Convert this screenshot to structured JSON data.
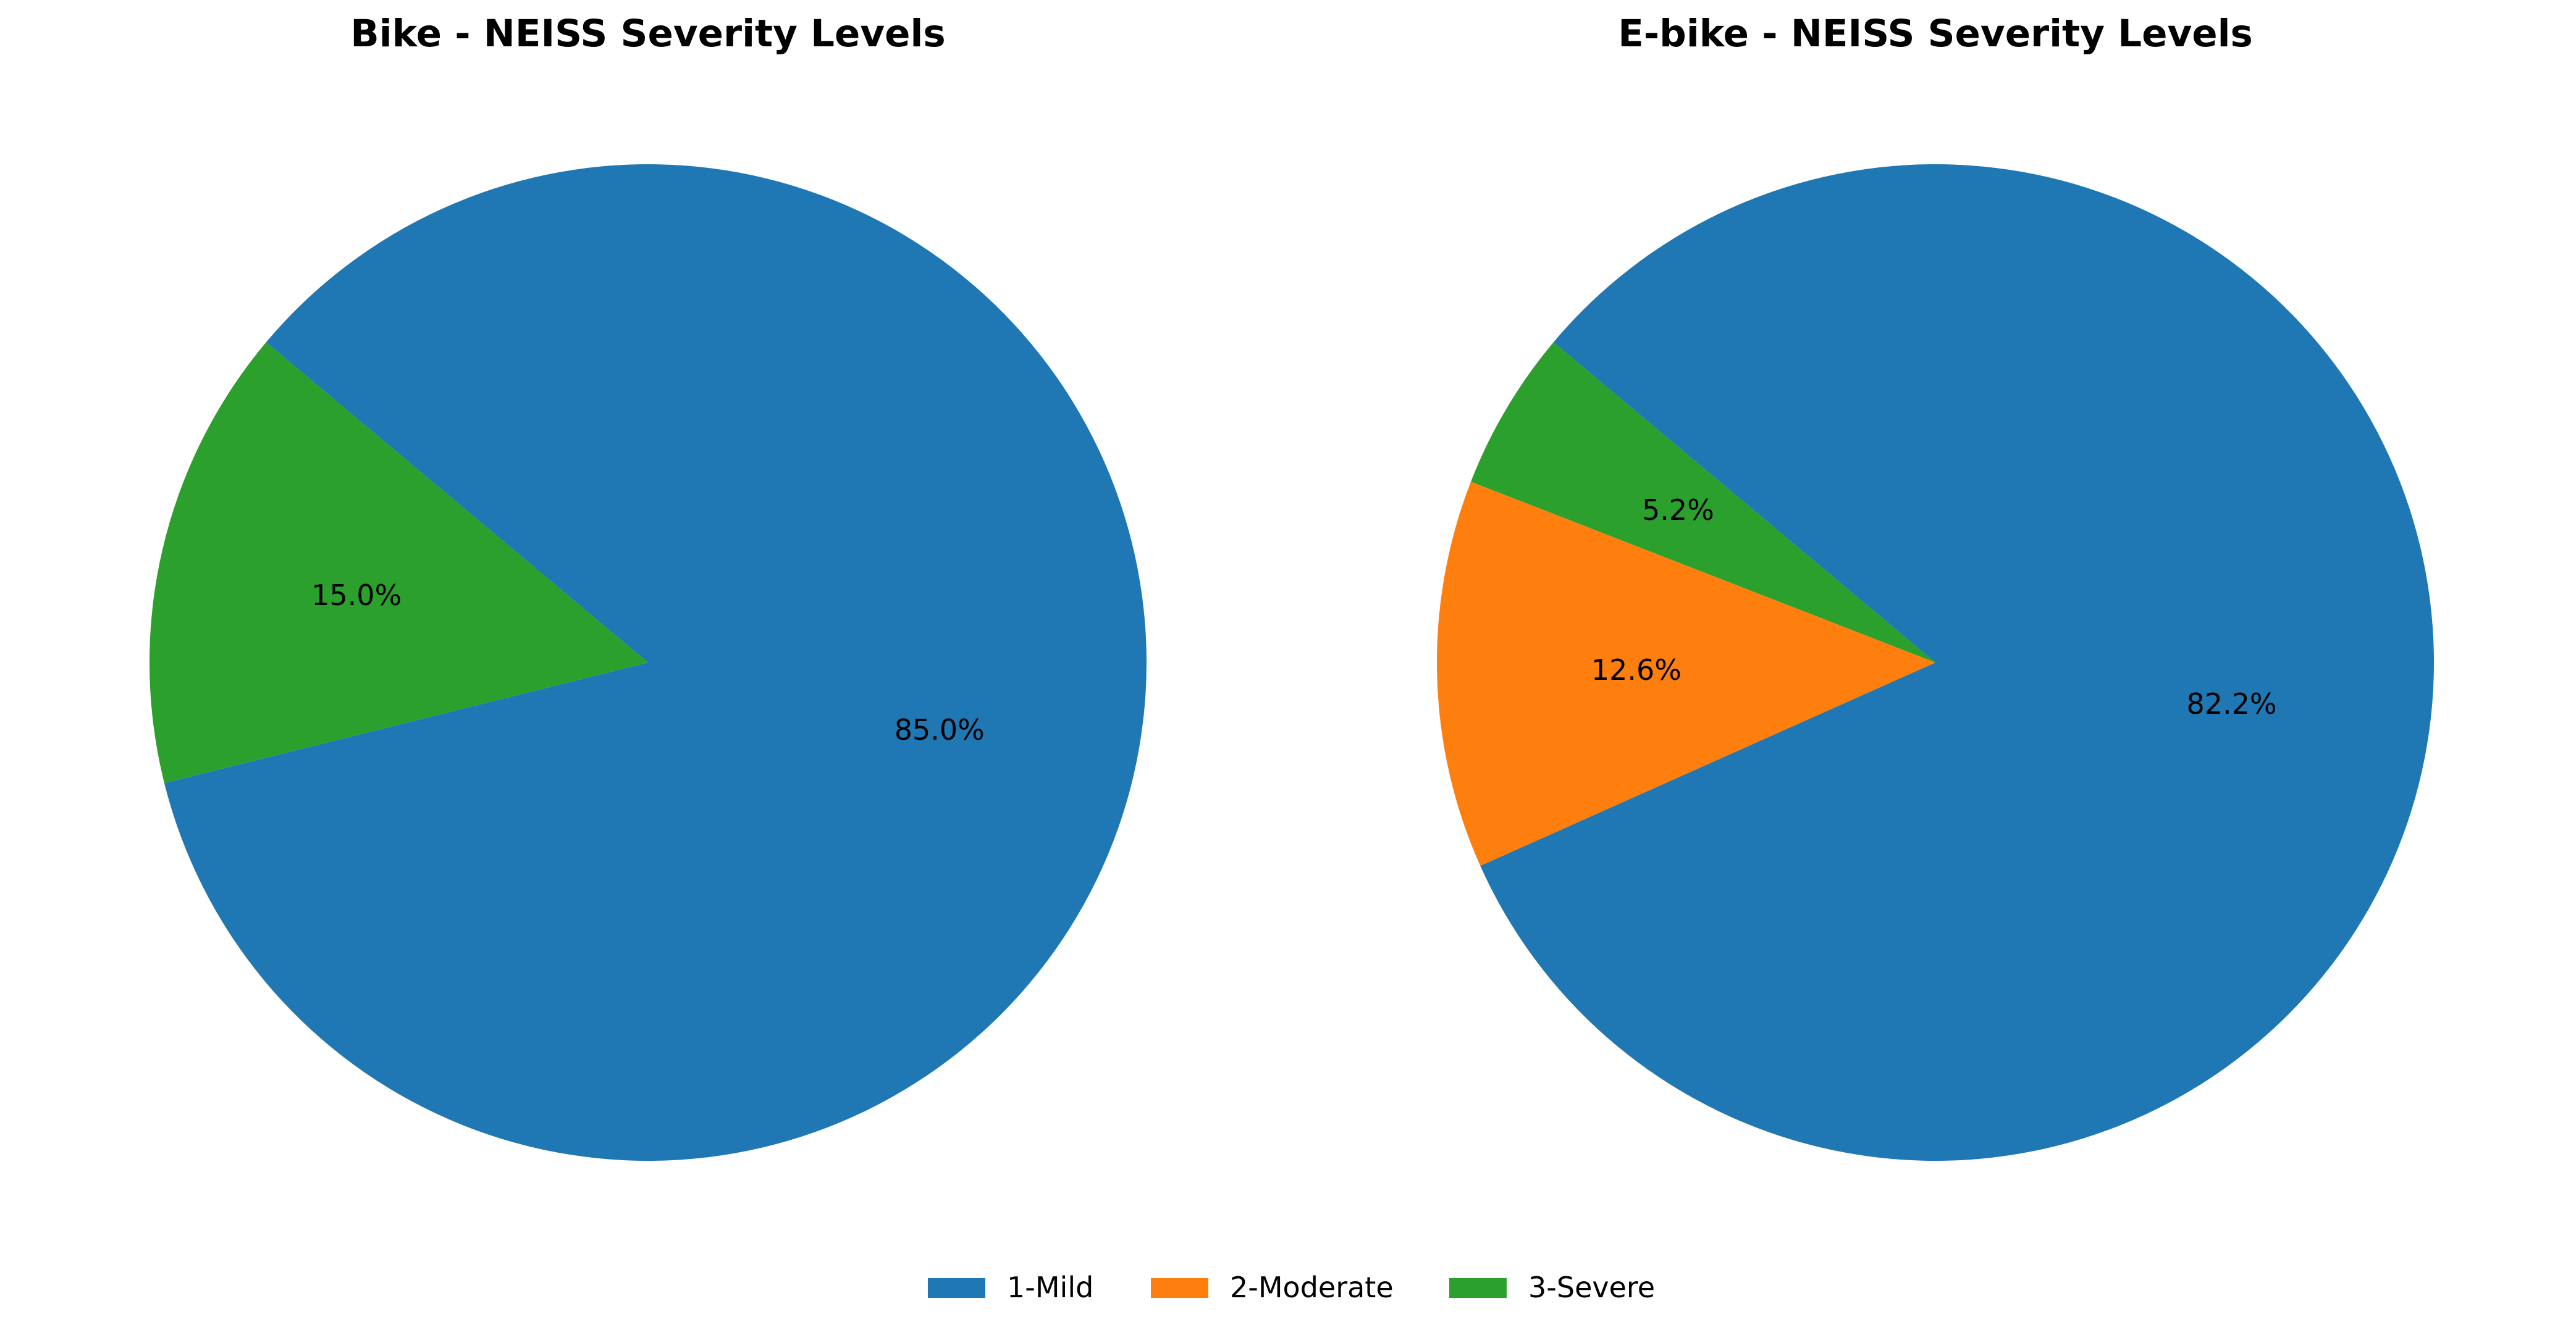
{
  "chart_data": [
    {
      "type": "pie",
      "title": "Bike - NEISS Severity Levels",
      "categories": [
        "1-Mild",
        "3-Severe"
      ],
      "values": [
        85.0,
        15.0
      ],
      "labels": [
        "85.0%",
        "15.0%"
      ],
      "colors": [
        "#1f77b4",
        "#2ca02c"
      ],
      "start_angle_deg": 140,
      "direction": "clockwise"
    },
    {
      "type": "pie",
      "title": "E-bike - NEISS Severity Levels",
      "categories": [
        "1-Mild",
        "2-Moderate",
        "3-Severe"
      ],
      "values": [
        82.2,
        12.6,
        5.2
      ],
      "labels": [
        "82.2%",
        "12.6%",
        "5.2%"
      ],
      "colors": [
        "#1f77b4",
        "#ff7f0e",
        "#2ca02c"
      ],
      "start_angle_deg": 140,
      "direction": "clockwise"
    }
  ],
  "legend": {
    "placement": "bottom-center",
    "entries": [
      {
        "label": "1-Mild",
        "color": "#1f77b4"
      },
      {
        "label": "2-Moderate",
        "color": "#ff7f0e"
      },
      {
        "label": "3-Severe",
        "color": "#2ca02c"
      }
    ]
  }
}
